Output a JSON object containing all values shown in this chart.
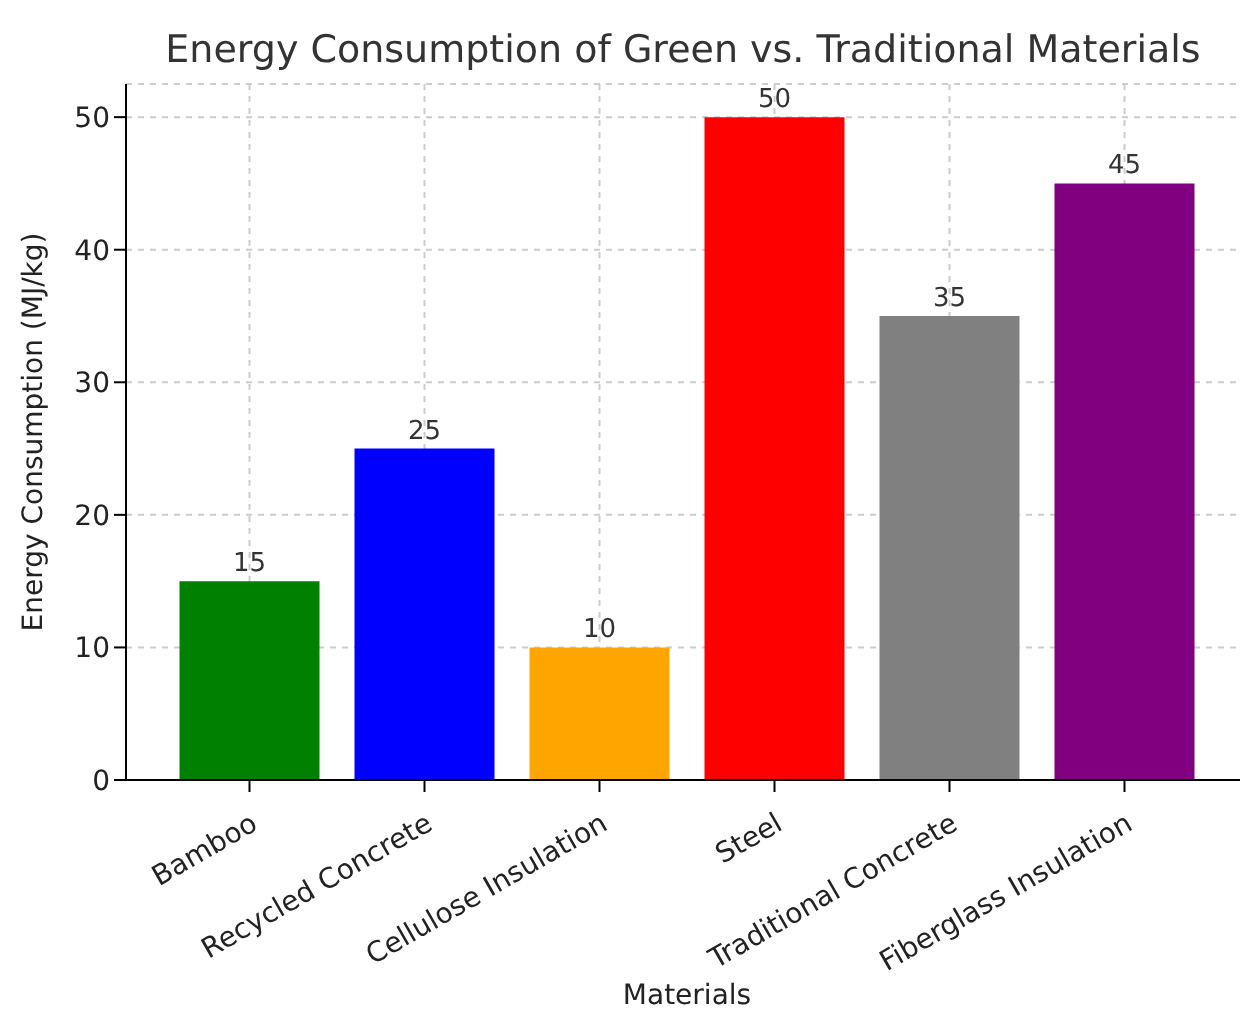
{
  "chart_data": {
    "type": "bar",
    "title": "Energy Consumption of Green vs. Traditional Materials",
    "xlabel": "Materials",
    "ylabel": "Energy Consumption (MJ/kg)",
    "categories": [
      "Bamboo",
      "Recycled Concrete",
      "Cellulose Insulation",
      "Steel",
      "Traditional Concrete",
      "Fiberglass Insulation"
    ],
    "values": [
      15,
      25,
      10,
      50,
      35,
      45
    ],
    "colors": [
      "#008000",
      "#0000ff",
      "#ffa500",
      "#ff0000",
      "#808080",
      "#800080"
    ],
    "ylim": [
      0,
      52.5
    ],
    "yticks": [
      0,
      10,
      20,
      30,
      40,
      50
    ],
    "grid": true,
    "data_labels": true
  }
}
